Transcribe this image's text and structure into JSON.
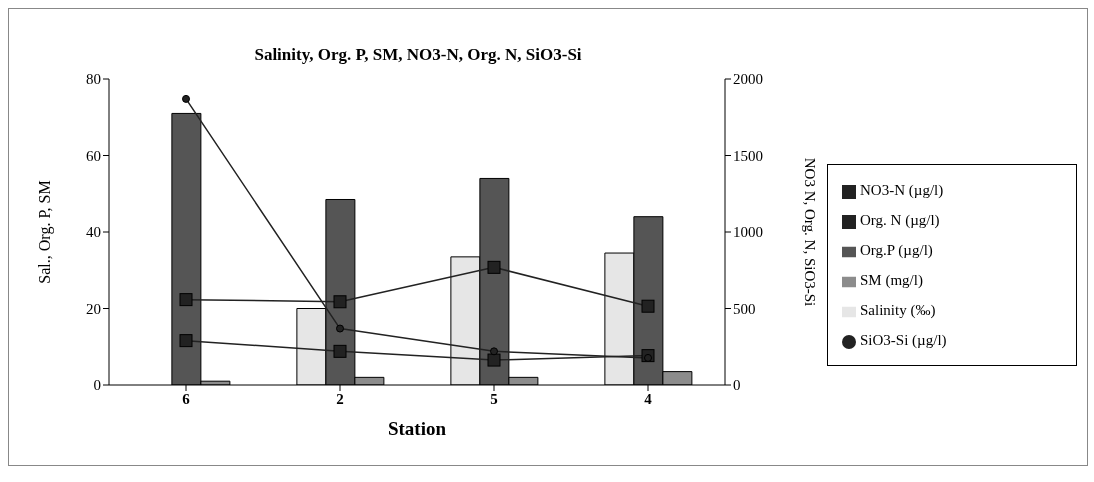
{
  "chart_data": {
    "type": "bar",
    "title": "Salinity, Org. P, SM, NO3-N, Org. N, SiO3-Si",
    "xlabel": "Station",
    "ylabel": "Sal., Org. P, SM",
    "y2label": "NO3 N, Org. N, SiO3-Si",
    "categories": [
      "6",
      "2",
      "5",
      "4"
    ],
    "series": [
      {
        "name": "Salinity (‰)",
        "color": "#e6e6e6",
        "values": [
          null,
          20,
          33.5,
          34.5
        ]
      },
      {
        "name": "Org.P (µg/l)",
        "color": "#555555",
        "values": [
          71,
          48.5,
          54,
          44
        ]
      },
      {
        "name": "SM (mg/l)",
        "color": "#8c8c8c",
        "values": [
          1,
          2,
          2,
          3.5
        ]
      },
      {
        "name": "NO3-N (µg/l)",
        "type": "line",
        "axis": "y2",
        "color": "#222222",
        "marker": "square",
        "values": [
          290,
          220,
          163,
          192
        ]
      },
      {
        "name": "Org. N (µg/l)",
        "type": "line",
        "axis": "y2",
        "color": "#222222",
        "marker": "square",
        "values": [
          558,
          544,
          769,
          515
        ]
      },
      {
        "name": "SiO3-Si (µg/l)",
        "type": "line",
        "axis": "y2",
        "color": "#222222",
        "marker": "circle",
        "values": [
          1870,
          369,
          220,
          177
        ]
      }
    ],
    "ylim": [
      0,
      80
    ],
    "yticks": [
      0,
      20,
      40,
      60,
      80
    ],
    "y2lim": [
      0,
      2000
    ],
    "y2ticks": [
      0,
      500,
      1000,
      1500,
      2000
    ],
    "legend": "right"
  }
}
